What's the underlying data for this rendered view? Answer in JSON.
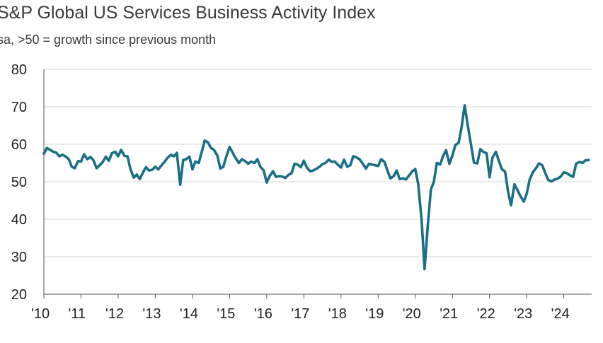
{
  "chart_data": {
    "type": "line",
    "title": "S&P Global US Services Business Activity Index",
    "subtitle": "sa, >50 = growth since previous month",
    "xlabel": "",
    "ylabel": "",
    "ylim": [
      20,
      80
    ],
    "yticks": [
      20,
      30,
      40,
      50,
      60,
      70,
      80
    ],
    "xlim": [
      2010.0,
      2024.75
    ],
    "xticks": [
      {
        "value": 2010,
        "label": "'10"
      },
      {
        "value": 2011,
        "label": "'11"
      },
      {
        "value": 2012,
        "label": "'12"
      },
      {
        "value": 2013,
        "label": "'13"
      },
      {
        "value": 2014,
        "label": "'14"
      },
      {
        "value": 2015,
        "label": "'15"
      },
      {
        "value": 2016,
        "label": "'16"
      },
      {
        "value": 2017,
        "label": "'17"
      },
      {
        "value": 2018,
        "label": "'18"
      },
      {
        "value": 2019,
        "label": "'19"
      },
      {
        "value": 2020,
        "label": "'20"
      },
      {
        "value": 2021,
        "label": "'21"
      },
      {
        "value": 2022,
        "label": "'22"
      },
      {
        "value": 2023,
        "label": "'23"
      },
      {
        "value": 2024,
        "label": "'24"
      }
    ],
    "grid": true,
    "series": [
      {
        "name": "Services Business Activity Index",
        "color": "#1b6f84",
        "x": [
          2010.0,
          2010.08,
          2010.17,
          2010.25,
          2010.33,
          2010.42,
          2010.5,
          2010.58,
          2010.67,
          2010.75,
          2010.83,
          2010.92,
          2011.0,
          2011.08,
          2011.17,
          2011.25,
          2011.33,
          2011.42,
          2011.5,
          2011.58,
          2011.67,
          2011.75,
          2011.83,
          2011.92,
          2012.0,
          2012.08,
          2012.17,
          2012.25,
          2012.33,
          2012.42,
          2012.5,
          2012.58,
          2012.67,
          2012.75,
          2012.83,
          2012.92,
          2013.0,
          2013.08,
          2013.17,
          2013.25,
          2013.33,
          2013.42,
          2013.5,
          2013.58,
          2013.67,
          2013.75,
          2013.83,
          2013.92,
          2014.0,
          2014.08,
          2014.17,
          2014.25,
          2014.33,
          2014.42,
          2014.5,
          2014.58,
          2014.67,
          2014.75,
          2014.83,
          2014.92,
          2015.0,
          2015.08,
          2015.17,
          2015.25,
          2015.33,
          2015.42,
          2015.5,
          2015.58,
          2015.67,
          2015.75,
          2015.83,
          2015.92,
          2016.0,
          2016.08,
          2016.17,
          2016.25,
          2016.33,
          2016.42,
          2016.5,
          2016.58,
          2016.67,
          2016.75,
          2016.83,
          2016.92,
          2017.0,
          2017.08,
          2017.17,
          2017.25,
          2017.33,
          2017.42,
          2017.5,
          2017.58,
          2017.67,
          2017.75,
          2017.83,
          2017.92,
          2018.0,
          2018.08,
          2018.17,
          2018.25,
          2018.33,
          2018.42,
          2018.5,
          2018.58,
          2018.67,
          2018.75,
          2018.83,
          2018.92,
          2019.0,
          2019.08,
          2019.17,
          2019.25,
          2019.33,
          2019.42,
          2019.5,
          2019.58,
          2019.67,
          2019.75,
          2019.83,
          2019.92,
          2020.0,
          2020.08,
          2020.17,
          2020.25,
          2020.33,
          2020.42,
          2020.5,
          2020.58,
          2020.67,
          2020.75,
          2020.83,
          2020.92,
          2021.0,
          2021.08,
          2021.17,
          2021.25,
          2021.33,
          2021.42,
          2021.5,
          2021.58,
          2021.67,
          2021.75,
          2021.83,
          2021.92,
          2022.0,
          2022.08,
          2022.17,
          2022.25,
          2022.33,
          2022.42,
          2022.5,
          2022.58,
          2022.67,
          2022.75,
          2022.83,
          2022.92,
          2023.0,
          2023.08,
          2023.17,
          2023.25,
          2023.33,
          2023.42,
          2023.5,
          2023.58,
          2023.67,
          2023.75,
          2023.83,
          2023.92,
          2024.0,
          2024.08,
          2024.17,
          2024.25,
          2024.33,
          2024.42,
          2024.5,
          2024.58,
          2024.67
        ],
        "values": [
          57.5,
          59.0,
          58.5,
          58.0,
          57.8,
          56.8,
          57.2,
          56.8,
          56.0,
          54.0,
          53.6,
          55.5,
          55.4,
          57.3,
          56.0,
          56.6,
          55.8,
          53.6,
          54.4,
          55.2,
          56.7,
          55.6,
          57.6,
          58.0,
          56.8,
          58.5,
          56.9,
          56.8,
          53.4,
          51.1,
          51.9,
          50.7,
          52.5,
          53.9,
          53.0,
          53.2,
          54.0,
          53.3,
          54.4,
          55.3,
          56.4,
          57.2,
          56.8,
          57.7,
          49.2,
          55.8,
          56.0,
          56.7,
          53.3,
          55.4,
          55.0,
          57.9,
          61.0,
          60.5,
          59.0,
          58.5,
          57.0,
          53.5,
          54.0,
          57.0,
          59.3,
          57.8,
          56.2,
          55.0,
          56.0,
          55.5,
          54.8,
          55.4,
          55.0,
          56.0,
          54.0,
          53.0,
          49.8,
          51.5,
          52.8,
          51.3,
          51.5,
          51.4,
          51.0,
          51.8,
          52.3,
          54.8,
          54.6,
          53.9,
          55.6,
          53.8,
          52.8,
          53.0,
          53.4,
          54.0,
          54.7,
          55.0,
          55.9,
          55.3,
          55.4,
          54.5,
          53.8,
          55.9,
          54.0,
          54.4,
          56.8,
          56.5,
          56.0,
          54.9,
          53.5,
          54.8,
          54.6,
          54.4,
          54.2,
          56.0,
          55.3,
          53.0,
          50.9,
          51.5,
          53.0,
          50.7,
          50.9,
          50.6,
          51.6,
          52.8,
          53.4,
          49.4,
          39.8,
          26.7,
          37.5,
          47.9,
          50.0,
          55.0,
          54.6,
          56.9,
          58.4,
          54.8,
          57.0,
          59.8,
          60.4,
          64.7,
          70.4,
          64.6,
          59.9,
          55.1,
          54.9,
          58.7,
          58.0,
          57.6,
          51.2,
          56.5,
          58.0,
          55.6,
          53.4,
          52.7,
          47.3,
          43.7,
          49.3,
          47.8,
          46.2,
          44.7,
          46.8,
          50.6,
          52.6,
          53.6,
          54.9,
          54.4,
          52.3,
          50.5,
          50.1,
          50.6,
          50.8,
          51.4,
          52.5,
          52.3,
          51.7,
          51.3,
          54.8,
          55.3,
          55.0,
          55.7,
          55.8
        ]
      }
    ]
  }
}
